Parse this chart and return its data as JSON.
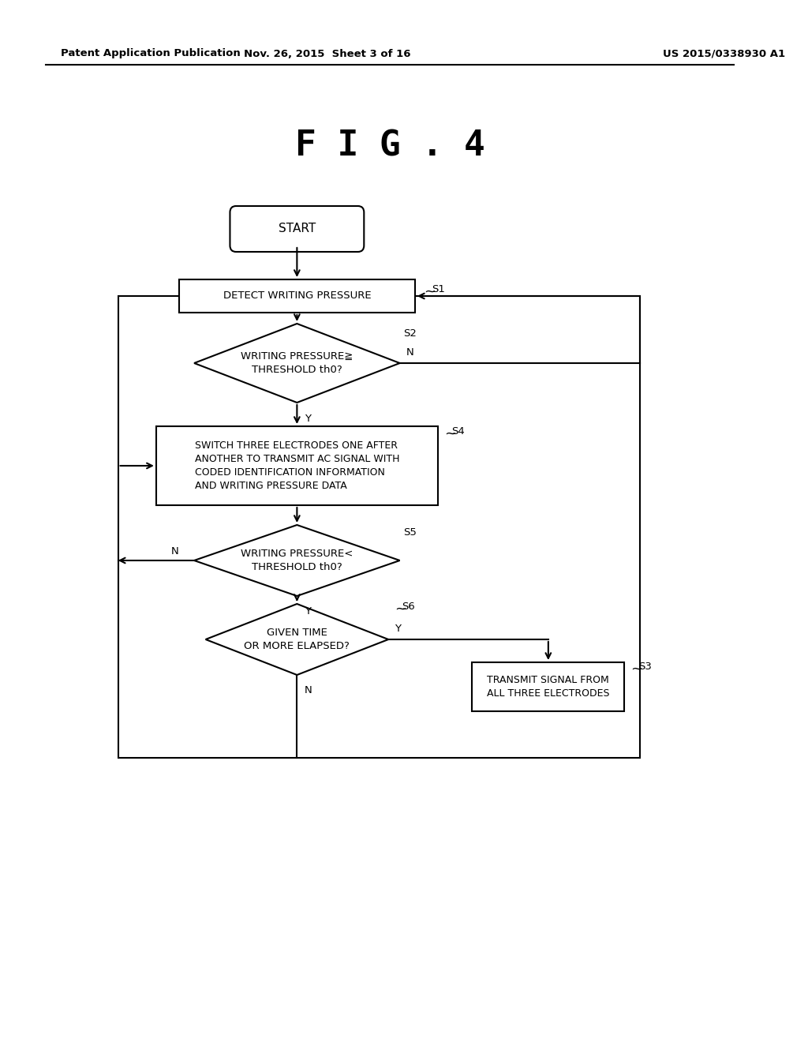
{
  "title": "F I G . 4",
  "header_left": "Patent Application Publication",
  "header_mid": "Nov. 26, 2015  Sheet 3 of 16",
  "header_right": "US 2015/0338930 A1",
  "bg_color": "#ffffff",
  "line_color": "#000000",
  "start_label": "START",
  "s1_label": "DETECT WRITING PRESSURE",
  "s1_tag": "S1",
  "s2_label": "WRITING PRESSURE≧\nTHRESHOLD th0?",
  "s2_tag": "S2",
  "s4_label": "SWITCH THREE ELECTRODES ONE AFTER\nANOTHER TO TRANSMIT AC SIGNAL WITH\nCODED IDENTIFICATION INFORMATION\nAND WRITING PRESSURE DATA",
  "s4_tag": "S4",
  "s5_label": "WRITING PRESSURE<\nTHRESHOLD th0?",
  "s5_tag": "S5",
  "s6_label": "GIVEN TIME\nOR MORE ELAPSED?",
  "s6_tag": "S6",
  "s3_label": "TRANSMIT SIGNAL FROM\nALL THREE ELECTRODES",
  "s3_tag": "S3",
  "label_Y": "Y",
  "label_N": "N"
}
